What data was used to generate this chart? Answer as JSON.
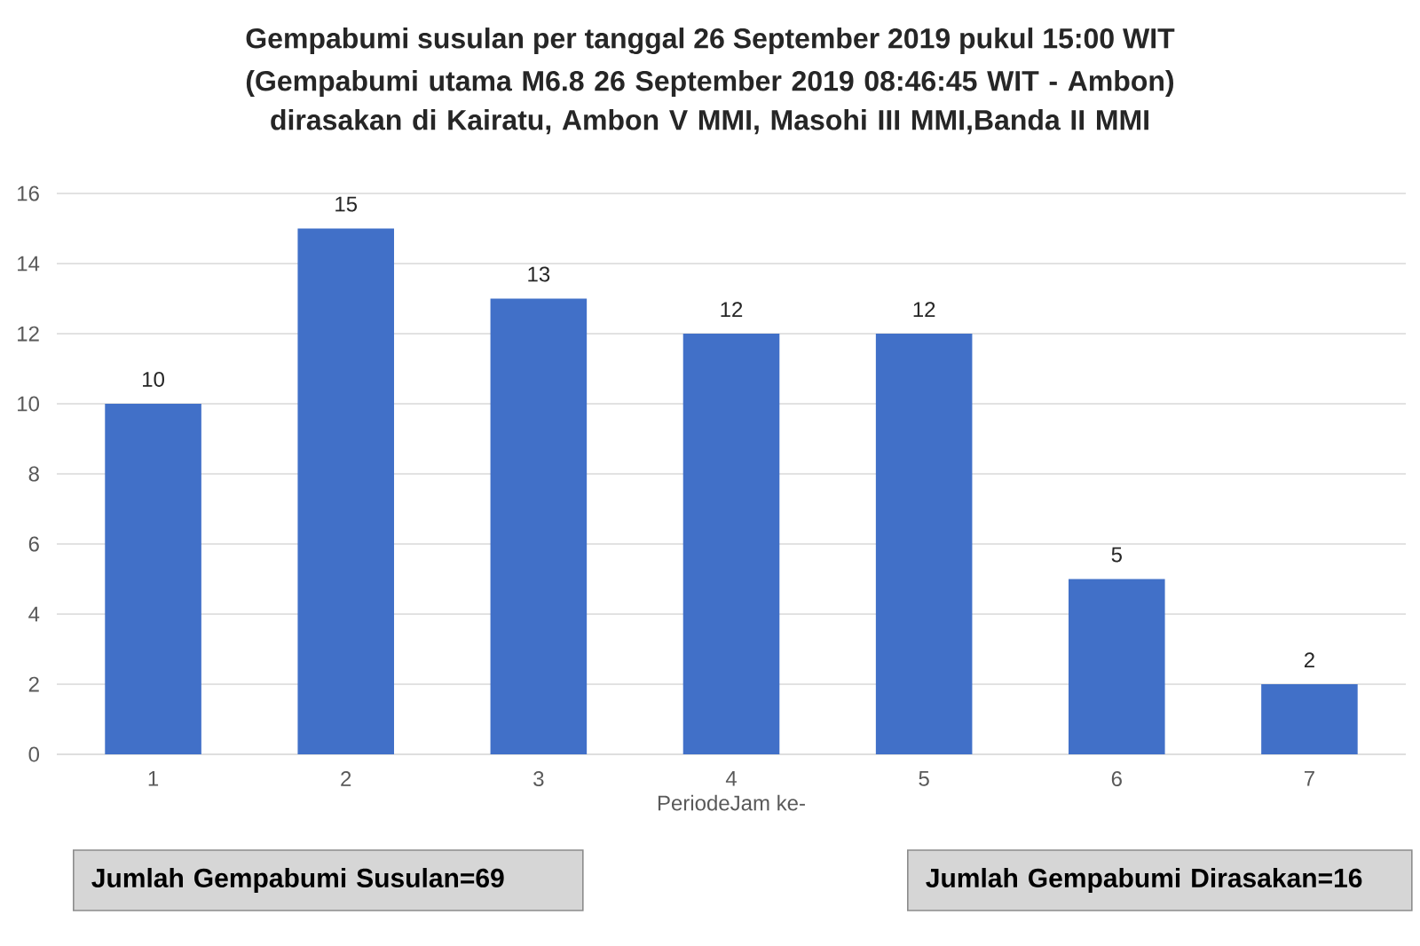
{
  "chart_data": {
    "type": "bar",
    "title": "Gempabumi susulan per tanggal 26 September 2019 pukul 15:00 WIT",
    "subtitle": "(Gempabumi utama M6.8 26 September 2019 08:46:45 WIT - Ambon) dirasakan di Kairatu, Ambon V MMI, Masohi III MMI,Banda II MMI",
    "xlabel": "PeriodeJam ke-",
    "categories": [
      "1",
      "2",
      "3",
      "4",
      "5",
      "6",
      "7"
    ],
    "values": [
      10,
      15,
      13,
      12,
      12,
      5,
      2
    ],
    "color": "#4170c8",
    "ylim": [
      0,
      16
    ],
    "yticks": [
      0,
      2,
      4,
      6,
      8,
      10,
      12,
      14,
      16
    ],
    "grid": "y",
    "data_labels": true,
    "annotations": [
      "Jumlah Gempabumi Susulan=69",
      "Jumlah Gempabumi Dirasakan=16"
    ]
  }
}
